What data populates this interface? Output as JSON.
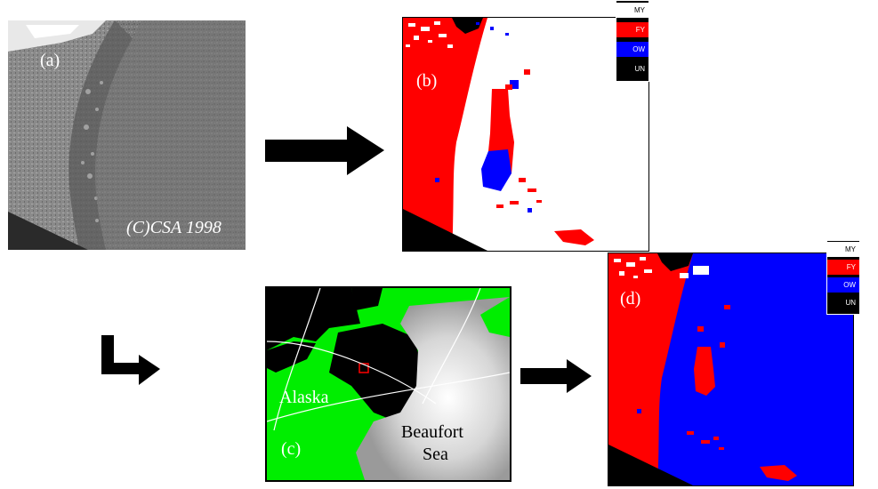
{
  "panels": {
    "a": {
      "label": "(a)",
      "copyright": "(C)CSA 1998"
    },
    "b": {
      "label": "(b)"
    },
    "c": {
      "label": "(c)",
      "land_label": "Alaska",
      "sea_label_line1": "Beaufort",
      "sea_label_line2": "Sea"
    },
    "d": {
      "label": "(d)"
    }
  },
  "legend": {
    "items": [
      {
        "code": "MY",
        "color": "#ffffff"
      },
      {
        "code": "FY",
        "color": "#ff0000"
      },
      {
        "code": "OW",
        "color": "#0000ff"
      },
      {
        "code": "UN",
        "color": "#000000"
      }
    ]
  },
  "colors": {
    "first_year_ice": "#ff0000",
    "open_water": "#0000ff",
    "land": "#00ee00",
    "unknown": "#000000"
  }
}
